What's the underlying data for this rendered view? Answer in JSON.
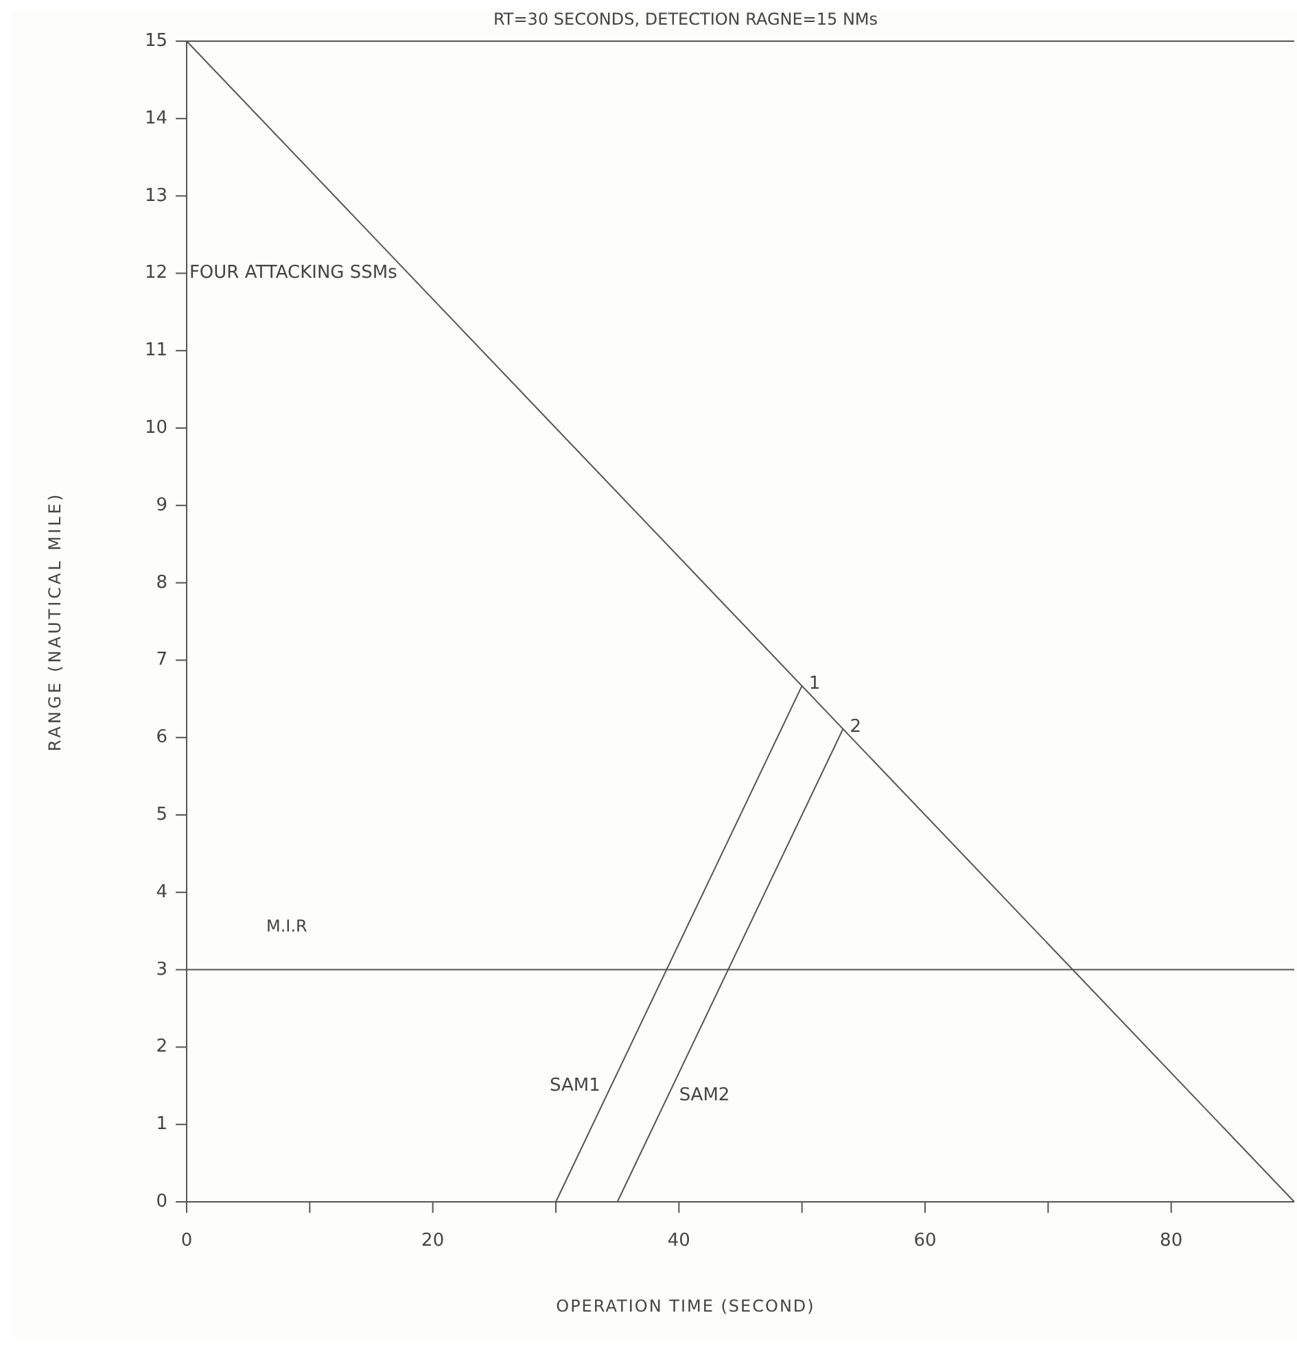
{
  "chart_data": {
    "type": "line",
    "title": "RT=30 SECONDS, DETECTION RAGNE=15 NMs",
    "xlabel": "OPERATION TIME (SECOND)",
    "ylabel": "RANGE (NAUTICAL MILE)",
    "series": [
      {
        "name": "FOUR ATTACKING SSMs",
        "color": "#555555",
        "x": [
          0,
          90
        ],
        "values": [
          15,
          0
        ]
      },
      {
        "name": "SAM1",
        "color": "#555555",
        "x": [
          30,
          50
        ],
        "values": [
          0,
          6.67
        ]
      },
      {
        "name": "SAM2",
        "color": "#555555",
        "x": [
          35,
          53.33
        ],
        "values": [
          0,
          6.11
        ]
      }
    ],
    "xlim": [
      0,
      90
    ],
    "ylim": [
      0,
      15
    ],
    "xticks": [
      0,
      {
        "value": 10,
        "label": null
      },
      20,
      {
        "value": 30,
        "label": null
      },
      40,
      {
        "value": 50,
        "label": null
      },
      60,
      {
        "value": 70,
        "label": null
      },
      80
    ],
    "yticks": [
      0,
      1,
      2,
      3,
      4,
      5,
      6,
      7,
      8,
      9,
      10,
      11,
      12,
      13,
      14,
      15
    ],
    "ref_lines": [
      {
        "axis": "y",
        "value": 3,
        "label": "M.I.R",
        "color": "#555555"
      }
    ],
    "annotations": [
      {
        "text": "1",
        "x": 50,
        "y": 6.67
      },
      {
        "text": "2",
        "x": 53.33,
        "y": 6.11
      }
    ],
    "grid": false
  }
}
